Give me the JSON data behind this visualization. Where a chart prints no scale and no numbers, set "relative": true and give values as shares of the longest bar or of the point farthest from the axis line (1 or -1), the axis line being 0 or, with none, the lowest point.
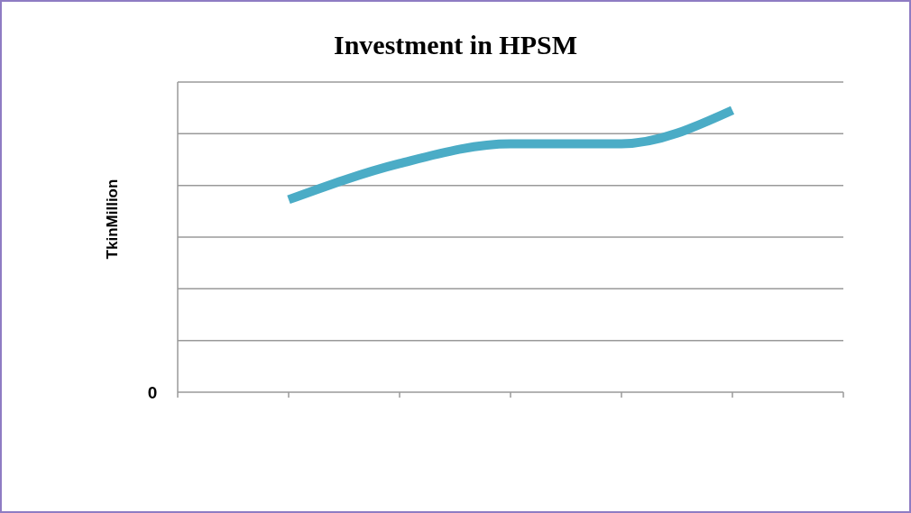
{
  "chart_data": {
    "type": "line",
    "title": "Investment in HPSM",
    "ylabel": "TkinMillion",
    "relative": true,
    "categories": [
      null,
      null,
      null,
      null,
      null,
      null,
      null
    ],
    "series": [
      {
        "color": "#4bacc6",
        "values": [
          null,
          0.683,
          0.811,
          0.881,
          0.881,
          1,
          null
        ]
      }
    ],
    "annotations": [
      "0"
    ],
    "grid": "y",
    "marker": "none",
    "line_style": "solid"
  }
}
